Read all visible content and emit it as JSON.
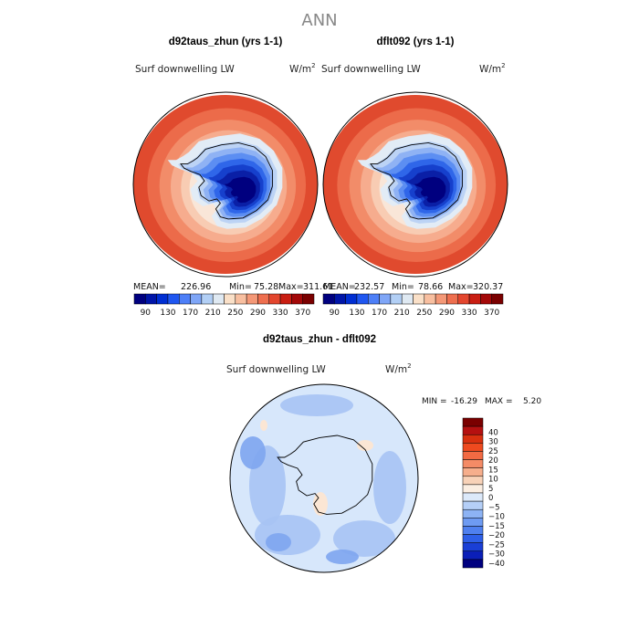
{
  "page_title": "ANN",
  "panels": [
    {
      "title": "d92taus_zhun (yrs 1-1)",
      "variable": "Surf downwelling LW",
      "units": "W/m",
      "units_exp": "2",
      "stats": {
        "mean_label": "MEAN=",
        "mean": "226.96",
        "min_label": "Min=",
        "min": "75.28",
        "max_label": "Max=",
        "max": "311.61"
      }
    },
    {
      "title": "dflt092 (yrs 1-1)",
      "variable": "Surf downwelling LW",
      "units": "W/m",
      "units_exp": "2",
      "stats": {
        "mean_label": "MEAN=",
        "mean": "232.57",
        "min_label": "Min=",
        "min": "78.66",
        "max_label": "Max=",
        "max": "320.37"
      }
    }
  ],
  "abs_colorbar": {
    "labels": [
      "90",
      "130",
      "170",
      "210",
      "250",
      "290",
      "330",
      "370"
    ],
    "colors": [
      "#00007f",
      "#0015a8",
      "#002ed2",
      "#1f56f0",
      "#4d7ff7",
      "#7fa6f7",
      "#b2cff5",
      "#dfe9f2",
      "#fae0c8",
      "#f8bfa0",
      "#f49877",
      "#ee6f4f",
      "#e3462e",
      "#c91e12",
      "#a30808",
      "#7a0000"
    ]
  },
  "diff_panel": {
    "title": "d92taus_zhun - dflt092",
    "variable": "Surf downwelling LW",
    "units": "W/m",
    "units_exp": "2",
    "stats": {
      "min_label": "MIN =",
      "min": "-16.29",
      "max_label": "MAX =",
      "max": "5.20"
    }
  },
  "diff_colorbar": {
    "labels": [
      "40",
      "30",
      "25",
      "20",
      "15",
      "10",
      "5",
      "0",
      "−5",
      "−10",
      "−15",
      "−20",
      "−25",
      "−30",
      "−40"
    ],
    "colors": [
      "#7a0000",
      "#b51010",
      "#d8300f",
      "#ee4a1f",
      "#f26a43",
      "#f48b66",
      "#f6ae8c",
      "#f8d2b8",
      "#fbeee2",
      "#dce9fa",
      "#b5cff7",
      "#8db3f4",
      "#6e9bf2",
      "#4f80ef",
      "#2e5fe8",
      "#1a3fd6",
      "#0b1fb8",
      "#00007f"
    ]
  },
  "map_colors": {
    "ocean_rings": [
      "#e04a2e",
      "#ec6b4a",
      "#f28c69",
      "#f6ac8e",
      "#f8ccb3",
      "#f9e6d8"
    ],
    "ice_rings": [
      "#e2ecf6",
      "#bcd3f5",
      "#8fb2f4",
      "#5c8ef2",
      "#2f66e9",
      "#1640cc",
      "#0a1fa6",
      "#00007f"
    ],
    "diff_base": "#d7e7fb",
    "diff_mid": "#a7c3f4",
    "diff_deep": "#7ea5ef",
    "diff_warm": "#fbe6d4"
  }
}
